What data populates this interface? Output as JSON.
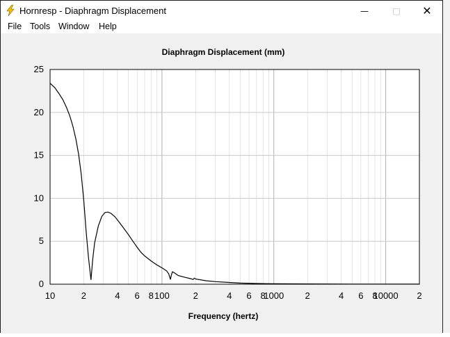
{
  "window": {
    "title": "Hornresp - Diaphragm Displacement"
  },
  "menu": {
    "items": [
      "File",
      "Tools",
      "Window",
      "Help"
    ]
  },
  "controls": {
    "minimize": "—",
    "maximize": "□",
    "close": "✕"
  },
  "colors": {
    "plot_background": "#ffffff",
    "grid": "#c8c8c8",
    "curve": "#000000",
    "frame": "#000000"
  },
  "chart_data": {
    "type": "line",
    "title": "Diaphragm Displacement (mm)",
    "xlabel": "Frequency (hertz)",
    "ylabel": "",
    "xscale": "log",
    "xlim": [
      10,
      20000
    ],
    "ylim": [
      0,
      25
    ],
    "grid": true,
    "yticks": [
      "0",
      "5",
      "10",
      "15",
      "20",
      "25"
    ],
    "xticks": [
      {
        "value": 10,
        "label": "10"
      },
      {
        "value": 20,
        "label": "2"
      },
      {
        "value": 40,
        "label": "4"
      },
      {
        "value": 60,
        "label": "6"
      },
      {
        "value": 80,
        "label": "8"
      },
      {
        "value": 100,
        "label": "100"
      },
      {
        "value": 200,
        "label": "2"
      },
      {
        "value": 400,
        "label": "4"
      },
      {
        "value": 600,
        "label": "6"
      },
      {
        "value": 800,
        "label": "8"
      },
      {
        "value": 1000,
        "label": "1000"
      },
      {
        "value": 2000,
        "label": "2"
      },
      {
        "value": 4000,
        "label": "4"
      },
      {
        "value": 6000,
        "label": "6"
      },
      {
        "value": 8000,
        "label": "8"
      },
      {
        "value": 10000,
        "label": "10000"
      },
      {
        "value": 20000,
        "label": "2"
      }
    ],
    "series": [
      {
        "points": [
          [
            10,
            23.4
          ],
          [
            11,
            22.9
          ],
          [
            12,
            22.2
          ],
          [
            13,
            21.5
          ],
          [
            14,
            20.6
          ],
          [
            15,
            19.6
          ],
          [
            16,
            18.4
          ],
          [
            17,
            16.9
          ],
          [
            18,
            15.1
          ],
          [
            19,
            12.8
          ],
          [
            20,
            9.8
          ],
          [
            21,
            6.2
          ],
          [
            22,
            3.2
          ],
          [
            23.2,
            0.5
          ],
          [
            24,
            2.8
          ],
          [
            25,
            4.8
          ],
          [
            27,
            6.8
          ],
          [
            29,
            7.9
          ],
          [
            31,
            8.35
          ],
          [
            33,
            8.4
          ],
          [
            35,
            8.25
          ],
          [
            38,
            7.85
          ],
          [
            41,
            7.3
          ],
          [
            45,
            6.6
          ],
          [
            50,
            5.8
          ],
          [
            55,
            5.0
          ],
          [
            60,
            4.3
          ],
          [
            65,
            3.7
          ],
          [
            70,
            3.3
          ],
          [
            80,
            2.7
          ],
          [
            90,
            2.25
          ],
          [
            100,
            1.9
          ],
          [
            110,
            1.55
          ],
          [
            115,
            1.2
          ],
          [
            119,
            0.55
          ],
          [
            121,
            1.0
          ],
          [
            124,
            1.45
          ],
          [
            128,
            1.35
          ],
          [
            140,
            1.0
          ],
          [
            160,
            0.8
          ],
          [
            180,
            0.65
          ],
          [
            190,
            0.55
          ],
          [
            195,
            0.7
          ],
          [
            200,
            0.6
          ],
          [
            250,
            0.4
          ],
          [
            300,
            0.3
          ],
          [
            400,
            0.2
          ],
          [
            500,
            0.13
          ],
          [
            700,
            0.08
          ],
          [
            1000,
            0.05
          ],
          [
            2000,
            0.03
          ],
          [
            5000,
            0.02
          ],
          [
            10000,
            0.02
          ],
          [
            20000,
            0.02
          ]
        ]
      }
    ]
  }
}
